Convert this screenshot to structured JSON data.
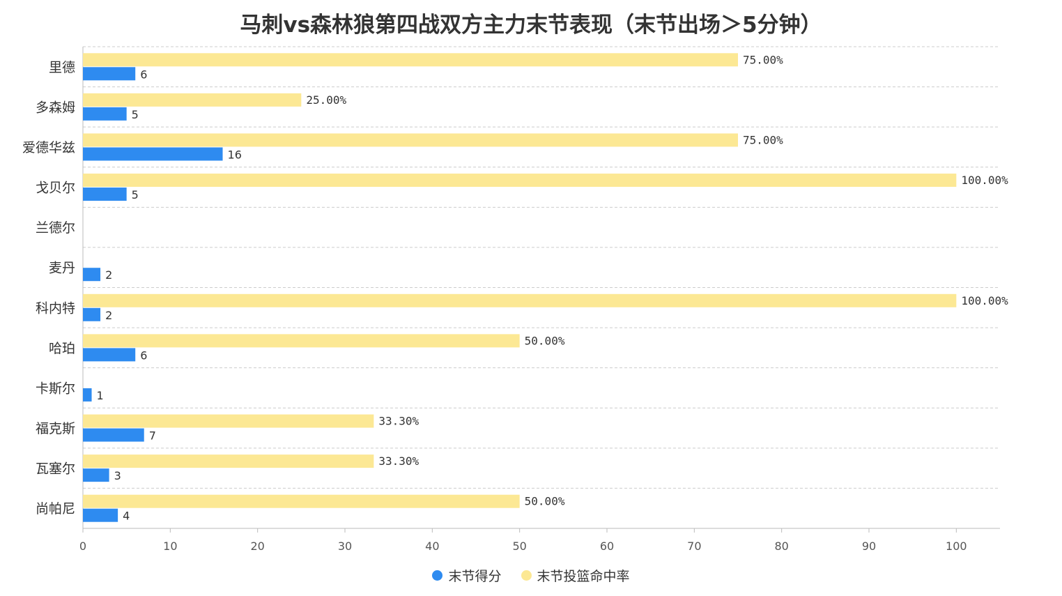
{
  "chart_data": {
    "type": "bar",
    "orientation": "horizontal",
    "title": "马刺vs森林狼第四战双方主力末节表现（末节出场＞5分钟）",
    "categories": [
      "里德",
      "多森姆",
      "爱德华兹",
      "戈贝尔",
      "兰德尔",
      "麦丹",
      "科内特",
      "哈珀",
      "卡斯尔",
      "福克斯",
      "瓦塞尔",
      "尚帕尼"
    ],
    "series": [
      {
        "name": "末节得分",
        "color": "#2E8BF0",
        "values": [
          6,
          5,
          16,
          5,
          null,
          2,
          2,
          6,
          1,
          7,
          3,
          4
        ],
        "labels": [
          "6",
          "5",
          "16",
          "5",
          "",
          "2",
          "2",
          "6",
          "1",
          "7",
          "3",
          "4"
        ]
      },
      {
        "name": "末节投篮命中率",
        "color": "#FCE894",
        "values": [
          75,
          25,
          75,
          100,
          null,
          null,
          100,
          50,
          null,
          33.3,
          33.3,
          50
        ],
        "labels": [
          "75.00%",
          "25.00%",
          "75.00%",
          "100.00%",
          "",
          "",
          "100.00%",
          "50.00%",
          "",
          "33.30%",
          "33.30%",
          "50.00%"
        ]
      }
    ],
    "xlim": [
      0,
      105
    ],
    "xticks": [
      "0",
      "10",
      "20",
      "30",
      "40",
      "50",
      "60",
      "70",
      "80",
      "90",
      "100"
    ],
    "grid": true,
    "legend_position": "bottom"
  }
}
